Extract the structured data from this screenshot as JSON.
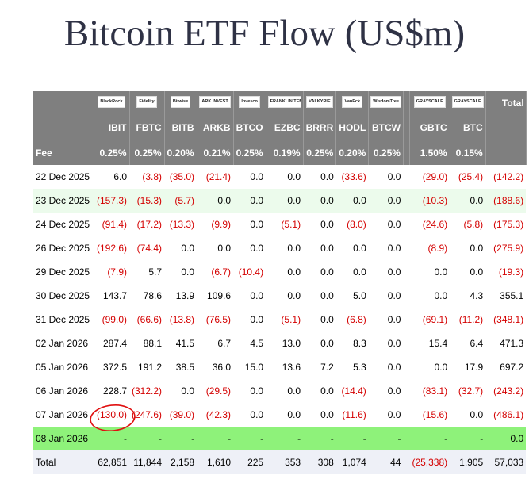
{
  "title": "Bitcoin ETF Flow (US$m)",
  "table": {
    "header": {
      "logos": [
        "BlackRock",
        "Fidelity",
        "Bitwise",
        "ARK INVEST",
        "Invesco",
        "FRANKLIN TEMPLETON",
        "VALKYRIE",
        "VanEck",
        "WisdomTree",
        "GRAYSCALE",
        "GRAYSCALE"
      ],
      "total_label": "Total",
      "tickers": [
        "IBIT",
        "FBTC",
        "BITB",
        "ARKB",
        "BTCO",
        "EZBC",
        "BRRR",
        "HODL",
        "BTCW",
        "GBTC",
        "BTC"
      ]
    },
    "fee": {
      "label": "Fee",
      "values": [
        "0.25%",
        "0.25%",
        "0.20%",
        "0.21%",
        "0.25%",
        "0.19%",
        "0.25%",
        "0.20%",
        "0.25%",
        "1.50%",
        "0.15%"
      ]
    },
    "rows": [
      {
        "date": "22 Dec 2025",
        "values": [
          "6.0",
          "(3.8)",
          "(35.0)",
          "(21.4)",
          "0.0",
          "0.0",
          "0.0",
          "(33.6)",
          "0.0",
          "(29.0)",
          "(25.4)",
          "(142.2)"
        ]
      },
      {
        "date": "23 Dec 2025",
        "values": [
          "(157.3)",
          "(15.3)",
          "(5.7)",
          "0.0",
          "0.0",
          "0.0",
          "0.0",
          "0.0",
          "0.0",
          "(10.3)",
          "0.0",
          "(188.6)"
        ]
      },
      {
        "date": "24 Dec 2025",
        "values": [
          "(91.4)",
          "(17.2)",
          "(13.3)",
          "(9.9)",
          "0.0",
          "(5.1)",
          "0.0",
          "(8.0)",
          "0.0",
          "(24.6)",
          "(5.8)",
          "(175.3)"
        ]
      },
      {
        "date": "26 Dec 2025",
        "values": [
          "(192.6)",
          "(74.4)",
          "0.0",
          "0.0",
          "0.0",
          "0.0",
          "0.0",
          "0.0",
          "0.0",
          "(8.9)",
          "0.0",
          "(275.9)"
        ]
      },
      {
        "date": "29 Dec 2025",
        "values": [
          "(7.9)",
          "5.7",
          "0.0",
          "(6.7)",
          "(10.4)",
          "0.0",
          "0.0",
          "0.0",
          "0.0",
          "0.0",
          "0.0",
          "(19.3)"
        ]
      },
      {
        "date": "30 Dec 2025",
        "values": [
          "143.7",
          "78.6",
          "13.9",
          "109.6",
          "0.0",
          "0.0",
          "0.0",
          "5.0",
          "0.0",
          "0.0",
          "4.3",
          "355.1"
        ]
      },
      {
        "date": "31 Dec 2025",
        "values": [
          "(99.0)",
          "(66.6)",
          "(13.8)",
          "(76.5)",
          "0.0",
          "(5.1)",
          "0.0",
          "(6.8)",
          "0.0",
          "(69.1)",
          "(11.2)",
          "(348.1)"
        ]
      },
      {
        "date": "02 Jan 2026",
        "values": [
          "287.4",
          "88.1",
          "41.5",
          "6.7",
          "4.5",
          "13.0",
          "0.0",
          "8.3",
          "0.0",
          "15.4",
          "6.4",
          "471.3"
        ]
      },
      {
        "date": "05 Jan 2026",
        "values": [
          "372.5",
          "191.2",
          "38.5",
          "36.0",
          "15.0",
          "13.6",
          "7.2",
          "5.3",
          "0.0",
          "0.0",
          "17.9",
          "697.2"
        ]
      },
      {
        "date": "06 Jan 2026",
        "values": [
          "228.7",
          "(312.2)",
          "0.0",
          "(29.5)",
          "0.0",
          "0.0",
          "0.0",
          "(14.4)",
          "0.0",
          "(83.1)",
          "(32.7)",
          "(243.2)"
        ]
      },
      {
        "date": "07 Jan 2026",
        "values": [
          "(130.0)",
          "(247.6)",
          "(39.0)",
          "(42.3)",
          "0.0",
          "0.0",
          "0.0",
          "(11.6)",
          "0.0",
          "(15.6)",
          "0.0",
          "(486.1)"
        ]
      },
      {
        "date": "08 Jan 2026",
        "values": [
          "-",
          "-",
          "-",
          "-",
          "-",
          "-",
          "-",
          "-",
          "-",
          "-",
          "-",
          "0.0"
        ]
      }
    ],
    "total": {
      "label": "Total",
      "values": [
        "62,851",
        "11,844",
        "2,158",
        "1,610",
        "225",
        "353",
        "308",
        "1,074",
        "44",
        "(25,338)",
        "1,905",
        "57,033"
      ]
    }
  }
}
